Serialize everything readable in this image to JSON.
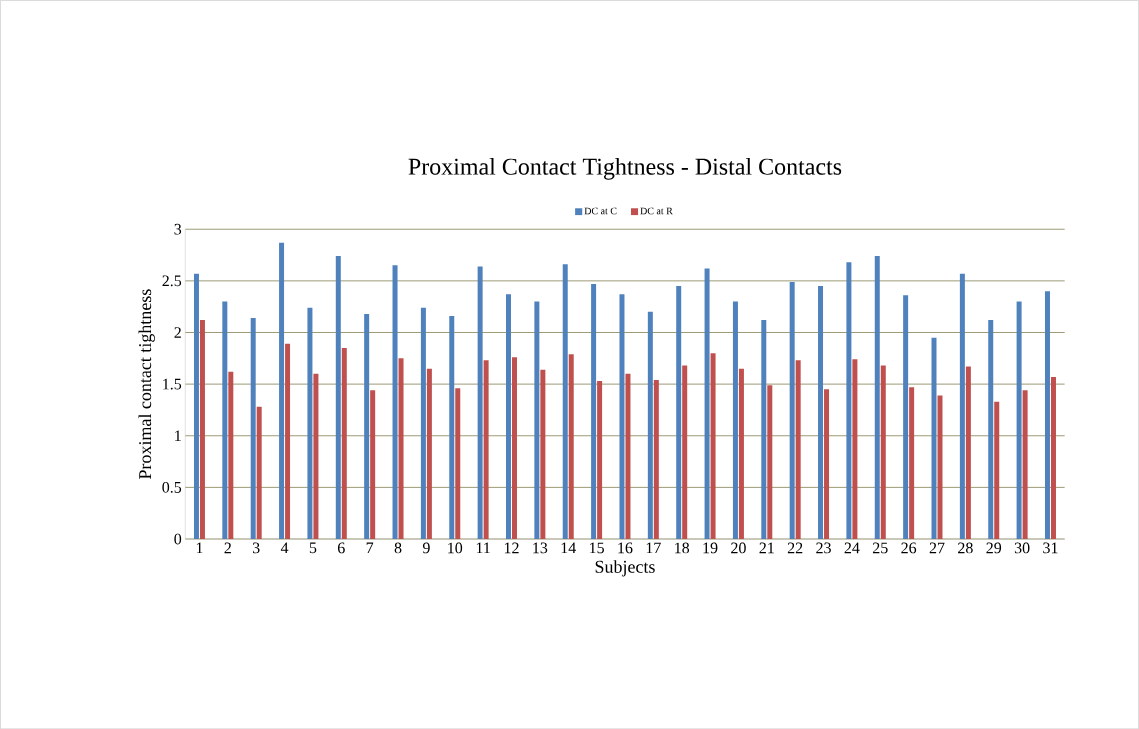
{
  "chart_data": {
    "type": "bar",
    "title": "Proximal Contact Tightness - Distal Contacts",
    "xlabel": "Subjects",
    "ylabel": "Proximal contact tightness",
    "categories": [
      "1",
      "2",
      "3",
      "4",
      "5",
      "6",
      "7",
      "8",
      "9",
      "10",
      "11",
      "12",
      "13",
      "14",
      "15",
      "16",
      "17",
      "18",
      "19",
      "20",
      "21",
      "22",
      "23",
      "24",
      "25",
      "26",
      "27",
      "28",
      "29",
      "30",
      "31"
    ],
    "series": [
      {
        "name": "DC at C",
        "color": "#4f81bd",
        "values": [
          2.57,
          2.3,
          2.14,
          2.87,
          2.24,
          2.74,
          2.18,
          2.65,
          2.24,
          2.16,
          2.64,
          2.37,
          2.3,
          2.66,
          2.47,
          2.37,
          2.2,
          2.45,
          2.62,
          2.3,
          2.12,
          2.49,
          2.45,
          2.68,
          2.74,
          2.36,
          1.95,
          2.57,
          2.12,
          2.3,
          2.4
        ]
      },
      {
        "name": "DC at R",
        "color": "#c0504d",
        "values": [
          2.12,
          1.62,
          1.28,
          1.89,
          1.6,
          1.85,
          1.44,
          1.75,
          1.65,
          1.46,
          1.73,
          1.76,
          1.64,
          1.79,
          1.53,
          1.6,
          1.54,
          1.68,
          1.8,
          1.65,
          1.49,
          1.73,
          1.45,
          1.74,
          1.68,
          1.47,
          1.39,
          1.67,
          1.33,
          1.44,
          1.57
        ]
      }
    ],
    "ylim": [
      0,
      3
    ],
    "yticks": [
      0,
      0.5,
      1,
      1.5,
      2,
      2.5,
      3
    ],
    "grid": "y",
    "legend": "top"
  }
}
